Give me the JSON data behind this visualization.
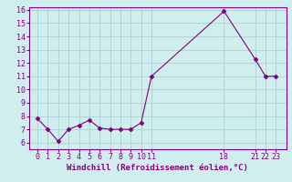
{
  "x": [
    0,
    1,
    2,
    3,
    4,
    5,
    6,
    7,
    8,
    9,
    10,
    11,
    18,
    21,
    22,
    23
  ],
  "y": [
    7.8,
    7.0,
    6.1,
    7.0,
    7.3,
    7.7,
    7.1,
    7.0,
    7.0,
    7.0,
    7.5,
    11.0,
    15.9,
    12.3,
    11.0,
    11.0
  ],
  "line_color": "#800080",
  "marker": "D",
  "marker_size": 2.5,
  "background_color": "#d0eeee",
  "grid_color": "#b0d8d8",
  "xlabel": "Windchill (Refroidissement éolien,°C)",
  "xlabel_color": "#800080",
  "tick_color": "#800080",
  "ylim": [
    5.5,
    16.2
  ],
  "xlim": [
    -0.8,
    24.0
  ],
  "yticks": [
    6,
    7,
    8,
    9,
    10,
    11,
    12,
    13,
    14,
    15,
    16
  ],
  "xticks": [
    0,
    1,
    2,
    3,
    4,
    5,
    6,
    7,
    8,
    9,
    10,
    11,
    18,
    21,
    22,
    23
  ],
  "xtick_labels": [
    "0",
    "1",
    "2",
    "3",
    "4",
    "5",
    "6",
    "7",
    "8",
    "9",
    "10",
    "11",
    "18",
    "21",
    "22",
    "23"
  ],
  "tick_fontsize": 6.0,
  "xlabel_fontsize": 6.5,
  "spine_color": "#800080"
}
